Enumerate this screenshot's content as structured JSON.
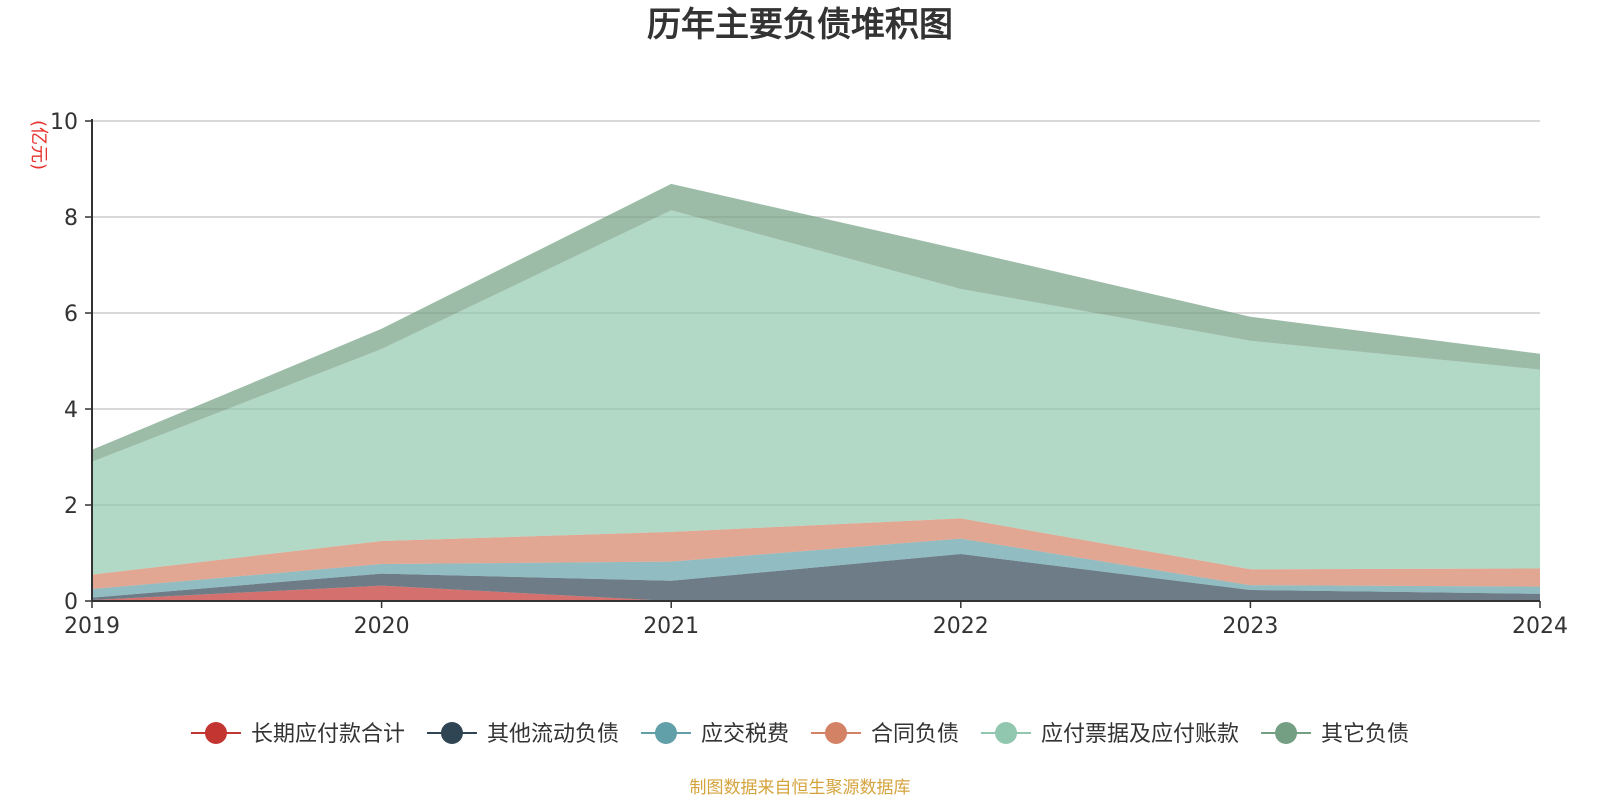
{
  "chart_data": {
    "type": "area",
    "stacked": true,
    "title": "历年主要负债堆积图",
    "unit_label": "(亿元)",
    "x": [
      "2019",
      "2020",
      "2021",
      "2022",
      "2023",
      "2024"
    ],
    "ylim": [
      0,
      10
    ],
    "yticks": [
      "0",
      "2",
      "4",
      "6",
      "8",
      "10"
    ],
    "grid": true,
    "legend_position": "bottom",
    "series": [
      {
        "name": "长期应付款合计",
        "color": "#c23531",
        "values": [
          0.02,
          0.32,
          0.0,
          0.0,
          0.0,
          0.0
        ]
      },
      {
        "name": "其他流动负债",
        "color": "#2f4554",
        "values": [
          0.05,
          0.25,
          0.42,
          0.98,
          0.23,
          0.15
        ]
      },
      {
        "name": "应交税费",
        "color": "#61a0a8",
        "values": [
          0.18,
          0.2,
          0.4,
          0.32,
          0.1,
          0.15
        ]
      },
      {
        "name": "合同负债",
        "color": "#d48265",
        "values": [
          0.3,
          0.48,
          0.62,
          0.42,
          0.33,
          0.38
        ]
      },
      {
        "name": "应付票据及应付账款",
        "color": "#91c7ae",
        "values": [
          2.35,
          4.0,
          6.7,
          4.78,
          4.76,
          4.14
        ]
      },
      {
        "name": "其它负债",
        "color": "#749f83",
        "values": [
          0.25,
          0.42,
          0.55,
          0.82,
          0.5,
          0.33
        ]
      }
    ]
  },
  "footer": {
    "source": "制图数据来自恒生聚源数据库"
  }
}
